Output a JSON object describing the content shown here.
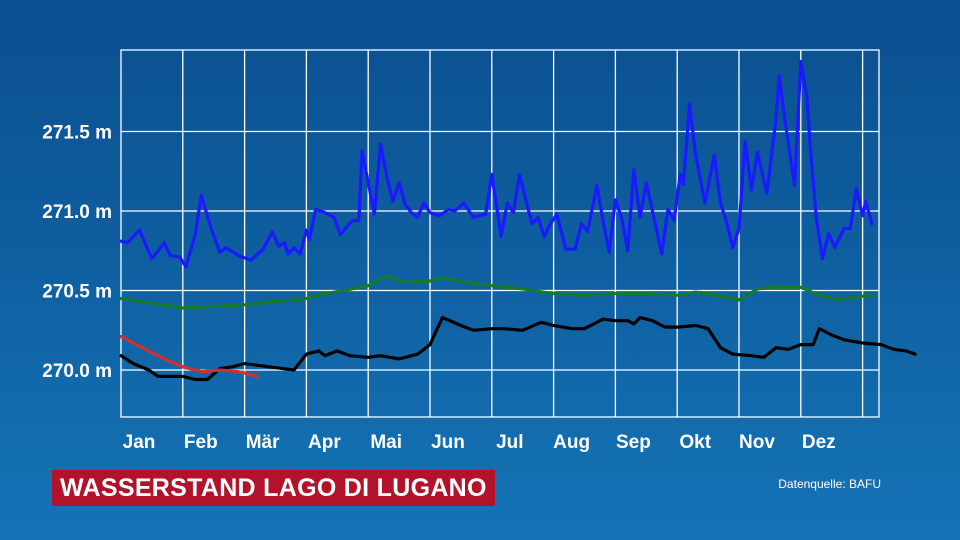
{
  "chart_data": {
    "type": "line",
    "title": "WASSERSTAND LAGO DI LUGANO",
    "source": "Datenquelle: BAFU",
    "ylim": [
      269.7,
      271.55
    ],
    "y_ticks": [
      {
        "value": 270.0,
        "label": "270.0 m"
      },
      {
        "value": 270.5,
        "label": "270.5 m"
      },
      {
        "value": 271.0,
        "label": "271.0 m"
      },
      {
        "value": 271.5,
        "label": "271.5 m"
      }
    ],
    "categories": [
      "Jan",
      "Feb",
      "Mär",
      "Apr",
      "Mai",
      "Jun",
      "Jul",
      "Aug",
      "Sep",
      "Okt",
      "Nov",
      "Dez"
    ],
    "grid": true,
    "series": [
      {
        "color": "#1a1aff",
        "points": [
          [
            0.0,
            270.81
          ],
          [
            0.1,
            270.8
          ],
          [
            0.3,
            270.88
          ],
          [
            0.5,
            270.7
          ],
          [
            0.7,
            270.8
          ],
          [
            0.8,
            270.72
          ],
          [
            0.95,
            270.71
          ],
          [
            1.05,
            270.65
          ],
          [
            1.2,
            270.85
          ],
          [
            1.3,
            271.1
          ],
          [
            1.45,
            270.9
          ],
          [
            1.6,
            270.74
          ],
          [
            1.7,
            270.77
          ],
          [
            1.9,
            270.72
          ],
          [
            2.1,
            270.69
          ],
          [
            2.3,
            270.76
          ],
          [
            2.45,
            270.87
          ],
          [
            2.55,
            270.78
          ],
          [
            2.65,
            270.8
          ],
          [
            2.7,
            270.73
          ],
          [
            2.8,
            270.77
          ],
          [
            2.9,
            270.73
          ],
          [
            3.0,
            270.88
          ],
          [
            3.05,
            270.82
          ],
          [
            3.15,
            271.01
          ],
          [
            3.3,
            270.99
          ],
          [
            3.45,
            270.96
          ],
          [
            3.55,
            270.85
          ],
          [
            3.65,
            270.9
          ],
          [
            3.75,
            270.94
          ],
          [
            3.85,
            270.94
          ],
          [
            3.9,
            271.38
          ],
          [
            4.0,
            271.18
          ],
          [
            4.1,
            270.98
          ],
          [
            4.2,
            271.42
          ],
          [
            4.3,
            271.22
          ],
          [
            4.4,
            271.06
          ],
          [
            4.5,
            271.18
          ],
          [
            4.6,
            271.04
          ],
          [
            4.7,
            270.99
          ],
          [
            4.8,
            270.96
          ],
          [
            4.9,
            271.05
          ],
          [
            5.0,
            270.99
          ],
          [
            5.15,
            270.97
          ],
          [
            5.3,
            271.01
          ],
          [
            5.4,
            271.0
          ],
          [
            5.55,
            271.05
          ],
          [
            5.7,
            270.96
          ],
          [
            5.9,
            270.98
          ],
          [
            6.0,
            271.23
          ],
          [
            6.15,
            270.84
          ],
          [
            6.25,
            271.05
          ],
          [
            6.35,
            270.99
          ],
          [
            6.45,
            271.23
          ],
          [
            6.55,
            271.07
          ],
          [
            6.65,
            270.92
          ],
          [
            6.75,
            270.96
          ],
          [
            6.85,
            270.84
          ],
          [
            6.95,
            270.92
          ],
          [
            7.05,
            270.98
          ],
          [
            7.2,
            270.76
          ],
          [
            7.35,
            270.76
          ],
          [
            7.45,
            270.92
          ],
          [
            7.55,
            270.87
          ],
          [
            7.7,
            271.16
          ],
          [
            7.8,
            270.94
          ],
          [
            7.9,
            270.74
          ],
          [
            8.0,
            271.07
          ],
          [
            8.1,
            270.96
          ],
          [
            8.2,
            270.75
          ],
          [
            8.3,
            271.26
          ],
          [
            8.4,
            270.96
          ],
          [
            8.5,
            271.18
          ],
          [
            8.6,
            271.0
          ],
          [
            8.75,
            270.73
          ],
          [
            8.85,
            271.01
          ],
          [
            8.95,
            270.94
          ],
          [
            9.05,
            271.23
          ],
          [
            9.1,
            271.17
          ],
          [
            9.2,
            271.67
          ],
          [
            9.3,
            271.35
          ],
          [
            9.45,
            271.05
          ],
          [
            9.6,
            271.35
          ],
          [
            9.7,
            271.05
          ],
          [
            9.8,
            270.93
          ],
          [
            9.9,
            270.77
          ],
          [
            10.0,
            270.89
          ],
          [
            10.1,
            271.44
          ],
          [
            10.2,
            271.13
          ],
          [
            10.3,
            271.37
          ],
          [
            10.45,
            271.11
          ],
          [
            10.6,
            271.58
          ],
          [
            10.65,
            271.85
          ],
          [
            10.75,
            271.55
          ],
          [
            10.9,
            271.16
          ],
          [
            11.0,
            271.94
          ],
          [
            11.1,
            271.71
          ],
          [
            11.15,
            271.42
          ],
          [
            11.25,
            270.96
          ],
          [
            11.35,
            270.7
          ],
          [
            11.45,
            270.86
          ],
          [
            11.55,
            270.77
          ],
          [
            11.7,
            270.89
          ],
          [
            11.8,
            270.89
          ],
          [
            11.9,
            271.14
          ],
          [
            12.0,
            270.97
          ],
          [
            12.05,
            271.06
          ],
          [
            12.15,
            270.92
          ]
        ]
      },
      {
        "color": "#157a2e",
        "points": [
          [
            0.0,
            270.45
          ],
          [
            0.5,
            270.42
          ],
          [
            1.0,
            270.39
          ],
          [
            1.5,
            270.4
          ],
          [
            2.0,
            270.41
          ],
          [
            2.5,
            270.43
          ],
          [
            3.0,
            270.45
          ],
          [
            3.3,
            270.48
          ],
          [
            3.6,
            270.5
          ],
          [
            4.0,
            270.53
          ],
          [
            4.3,
            270.59
          ],
          [
            4.6,
            270.55
          ],
          [
            5.0,
            270.56
          ],
          [
            5.2,
            270.58
          ],
          [
            5.6,
            270.55
          ],
          [
            6.0,
            270.53
          ],
          [
            6.5,
            270.51
          ],
          [
            7.0,
            270.48
          ],
          [
            7.5,
            270.47
          ],
          [
            8.0,
            270.48
          ],
          [
            8.5,
            270.48
          ],
          [
            9.0,
            270.47
          ],
          [
            9.3,
            270.49
          ],
          [
            9.5,
            270.48
          ],
          [
            10.0,
            270.44
          ],
          [
            10.3,
            270.51
          ],
          [
            10.6,
            270.52
          ],
          [
            11.0,
            270.52
          ],
          [
            11.3,
            270.47
          ],
          [
            11.6,
            270.44
          ],
          [
            11.9,
            270.46
          ],
          [
            12.15,
            270.47
          ]
        ]
      },
      {
        "color": "#000000",
        "points": [
          [
            0.0,
            270.09
          ],
          [
            0.2,
            270.04
          ],
          [
            0.45,
            270.0
          ],
          [
            0.6,
            269.96
          ],
          [
            1.0,
            269.96
          ],
          [
            1.2,
            269.94
          ],
          [
            1.4,
            269.94
          ],
          [
            1.6,
            270.01
          ],
          [
            1.8,
            270.02
          ],
          [
            2.0,
            270.04
          ],
          [
            2.2,
            270.03
          ],
          [
            2.6,
            270.01
          ],
          [
            2.8,
            270.0
          ],
          [
            3.0,
            270.1
          ],
          [
            3.2,
            270.12
          ],
          [
            3.3,
            270.09
          ],
          [
            3.5,
            270.12
          ],
          [
            3.7,
            270.09
          ],
          [
            4.0,
            270.08
          ],
          [
            4.2,
            270.09
          ],
          [
            4.5,
            270.07
          ],
          [
            4.8,
            270.1
          ],
          [
            5.0,
            270.16
          ],
          [
            5.2,
            270.33
          ],
          [
            5.5,
            270.28
          ],
          [
            5.7,
            270.25
          ],
          [
            6.0,
            270.26
          ],
          [
            6.2,
            270.26
          ],
          [
            6.5,
            270.25
          ],
          [
            6.8,
            270.3
          ],
          [
            7.0,
            270.28
          ],
          [
            7.3,
            270.26
          ],
          [
            7.5,
            270.26
          ],
          [
            7.8,
            270.32
          ],
          [
            8.0,
            270.31
          ],
          [
            8.2,
            270.31
          ],
          [
            8.3,
            270.29
          ],
          [
            8.4,
            270.33
          ],
          [
            8.6,
            270.31
          ],
          [
            8.8,
            270.27
          ],
          [
            9.0,
            270.27
          ],
          [
            9.3,
            270.28
          ],
          [
            9.5,
            270.26
          ],
          [
            9.7,
            270.14
          ],
          [
            9.9,
            270.1
          ],
          [
            10.2,
            270.09
          ],
          [
            10.4,
            270.08
          ],
          [
            10.6,
            270.14
          ],
          [
            10.8,
            270.13
          ],
          [
            11.0,
            270.16
          ],
          [
            11.2,
            270.16
          ],
          [
            11.3,
            270.26
          ],
          [
            11.5,
            270.22
          ],
          [
            11.7,
            270.19
          ],
          [
            12.0,
            270.17
          ],
          [
            12.3,
            270.16
          ],
          [
            12.5,
            270.13
          ],
          [
            12.7,
            270.12
          ],
          [
            12.85,
            270.1
          ]
        ]
      },
      {
        "color": "#d32f2f",
        "points": [
          [
            0.0,
            270.21
          ],
          [
            0.3,
            270.15
          ],
          [
            0.7,
            270.07
          ],
          [
            1.0,
            270.02
          ],
          [
            1.3,
            269.99
          ],
          [
            1.6,
            270.0
          ],
          [
            1.9,
            269.99
          ],
          [
            2.2,
            269.96
          ]
        ]
      }
    ]
  }
}
